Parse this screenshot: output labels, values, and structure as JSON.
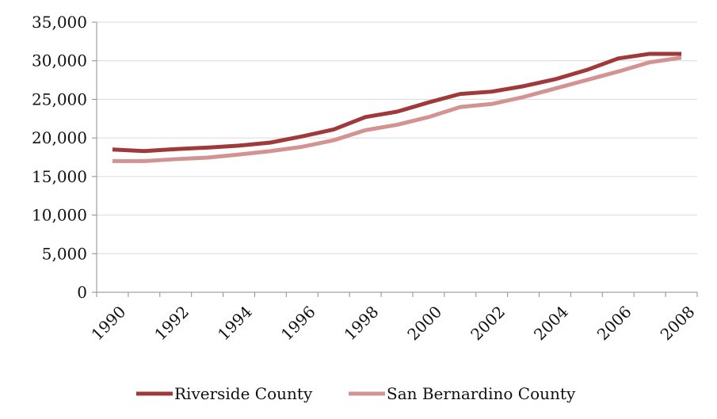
{
  "chart_data": {
    "type": "line",
    "title": "",
    "xlabel": "",
    "ylabel": "",
    "x": [
      1990,
      1991,
      1992,
      1993,
      1994,
      1995,
      1996,
      1997,
      1998,
      1999,
      2000,
      2001,
      2002,
      2003,
      2004,
      2005,
      2006,
      2007,
      2008
    ],
    "x_tick_labels": [
      "1990",
      "1992",
      "1994",
      "1996",
      "1998",
      "2000",
      "2002",
      "2004",
      "2006",
      "2008"
    ],
    "y_tick_labels": [
      "0",
      "5,000",
      "10,000",
      "15,000",
      "20,000",
      "25,000",
      "30,000",
      "35,000"
    ],
    "ylim": [
      0,
      35000
    ],
    "grid": true,
    "legend_position": "bottom",
    "series": [
      {
        "name": "Riverside County",
        "color": "#a0393a",
        "values": [
          18500,
          18300,
          18550,
          18750,
          19000,
          19400,
          20200,
          21100,
          22700,
          23400,
          24600,
          25700,
          26000,
          26700,
          27600,
          28800,
          30300,
          30900,
          30900
        ]
      },
      {
        "name": "San Bernardino County",
        "color": "#d39393",
        "values": [
          17000,
          17000,
          17250,
          17450,
          17850,
          18300,
          18850,
          19700,
          21000,
          21700,
          22700,
          24000,
          24400,
          25300,
          26400,
          27500,
          28600,
          29800,
          30400
        ]
      }
    ]
  }
}
